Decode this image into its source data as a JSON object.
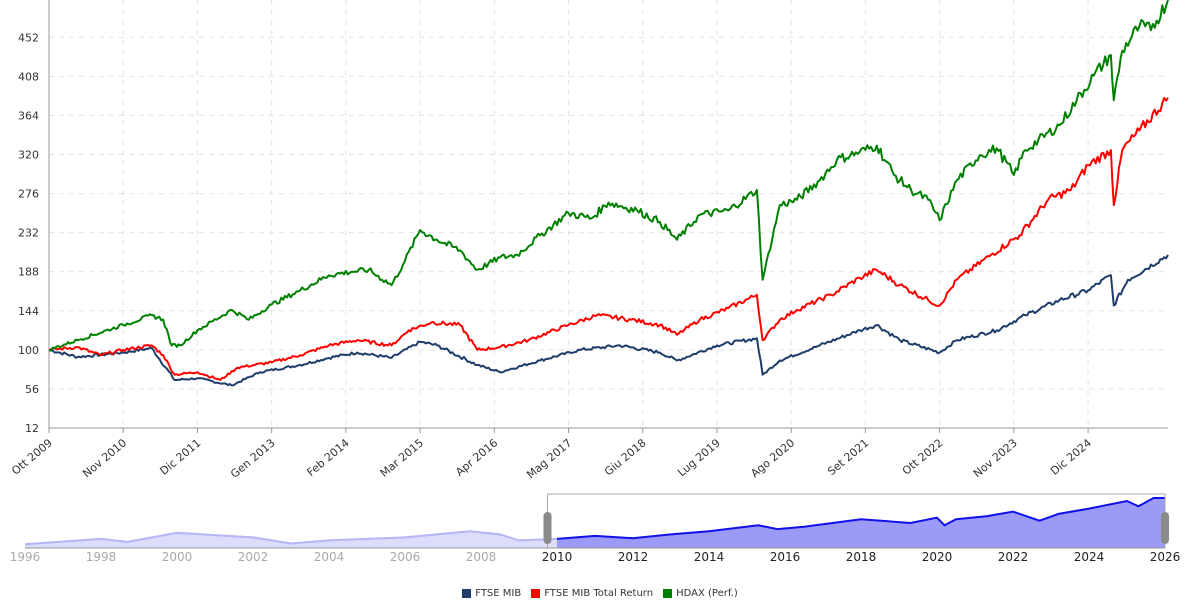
{
  "chart_data": {
    "type": "line",
    "title": "",
    "xlabel": "",
    "ylabel": "",
    "x_unit": "months since Oct 2009",
    "xlim": [
      0,
      196
    ],
    "ylim": [
      12,
      494
    ],
    "grid": true,
    "legend_position": "bottom-center",
    "yticks": [
      12,
      56,
      100,
      144,
      188,
      232,
      276,
      320,
      364,
      408,
      452
    ],
    "xticks": [
      {
        "m": 0,
        "label": "Ott 2009"
      },
      {
        "m": 13,
        "label": "Nov 2010"
      },
      {
        "m": 26,
        "label": "Dic 2011"
      },
      {
        "m": 39,
        "label": "Gen 2013"
      },
      {
        "m": 52,
        "label": "Feb 2014"
      },
      {
        "m": 65,
        "label": "Mar 2015"
      },
      {
        "m": 78,
        "label": "Apr 2016"
      },
      {
        "m": 91,
        "label": "Mag 2017"
      },
      {
        "m": 104,
        "label": "Giu 2018"
      },
      {
        "m": 117,
        "label": "Lug 2019"
      },
      {
        "m": 130,
        "label": "Ago 2020"
      },
      {
        "m": 143,
        "label": "Set 2021"
      },
      {
        "m": 156,
        "label": "Ott 2022"
      },
      {
        "m": 169,
        "label": "Nov 2023"
      },
      {
        "m": 182,
        "label": "Dic 2024"
      }
    ],
    "series": [
      {
        "name": "FTSE MIB",
        "color": "#1f3d6b",
        "points": [
          [
            0,
            100
          ],
          [
            5,
            92
          ],
          [
            13,
            97
          ],
          [
            18,
            102
          ],
          [
            22,
            66
          ],
          [
            26,
            68
          ],
          [
            32,
            60
          ],
          [
            37,
            75
          ],
          [
            44,
            83
          ],
          [
            49,
            91
          ],
          [
            54,
            97
          ],
          [
            60,
            91
          ],
          [
            65,
            109
          ],
          [
            68,
            105
          ],
          [
            75,
            83
          ],
          [
            79,
            75
          ],
          [
            86,
            88
          ],
          [
            93,
            100
          ],
          [
            100,
            105
          ],
          [
            107,
            97
          ],
          [
            110,
            88
          ],
          [
            117,
            105
          ],
          [
            124,
            113
          ],
          [
            125,
            72
          ],
          [
            128,
            88
          ],
          [
            135,
            105
          ],
          [
            142,
            122
          ],
          [
            145,
            128
          ],
          [
            149,
            111
          ],
          [
            156,
            97
          ],
          [
            159,
            111
          ],
          [
            166,
            122
          ],
          [
            171,
            139
          ],
          [
            177,
            156
          ],
          [
            182,
            167
          ],
          [
            186,
            184
          ],
          [
            186.5,
            150
          ],
          [
            189,
            179
          ],
          [
            196,
            207
          ]
        ]
      },
      {
        "name": "FTSE MIB Total Return",
        "color": "#ff0000",
        "points": [
          [
            0,
            100
          ],
          [
            5,
            103
          ],
          [
            9,
            94
          ],
          [
            13,
            100
          ],
          [
            18,
            105
          ],
          [
            20,
            94
          ],
          [
            22,
            72
          ],
          [
            26,
            75
          ],
          [
            30,
            66
          ],
          [
            33,
            80
          ],
          [
            39,
            86
          ],
          [
            44,
            94
          ],
          [
            49,
            105
          ],
          [
            54,
            111
          ],
          [
            60,
            105
          ],
          [
            63,
            122
          ],
          [
            67,
            131
          ],
          [
            72,
            128
          ],
          [
            75,
            100
          ],
          [
            79,
            103
          ],
          [
            84,
            111
          ],
          [
            91,
            128
          ],
          [
            96,
            139
          ],
          [
            102,
            134
          ],
          [
            107,
            128
          ],
          [
            110,
            117
          ],
          [
            114,
            134
          ],
          [
            119,
            147
          ],
          [
            124,
            162
          ],
          [
            125,
            111
          ],
          [
            128,
            134
          ],
          [
            131,
            145
          ],
          [
            137,
            162
          ],
          [
            142,
            181
          ],
          [
            145,
            190
          ],
          [
            149,
            173
          ],
          [
            154,
            156
          ],
          [
            156,
            150
          ],
          [
            159,
            179
          ],
          [
            165,
            207
          ],
          [
            170,
            229
          ],
          [
            175,
            269
          ],
          [
            179,
            280
          ],
          [
            182,
            308
          ],
          [
            186,
            325
          ],
          [
            186.5,
            263
          ],
          [
            188,
            325
          ],
          [
            191,
            347
          ],
          [
            196,
            384
          ]
        ]
      },
      {
        "name": "HDAX (Perf.)",
        "color": "#008000",
        "points": [
          [
            0,
            100
          ],
          [
            5,
            111
          ],
          [
            13,
            128
          ],
          [
            18,
            139
          ],
          [
            20,
            134
          ],
          [
            21.5,
            105
          ],
          [
            23,
            105
          ],
          [
            26,
            122
          ],
          [
            32,
            145
          ],
          [
            35,
            134
          ],
          [
            39,
            151
          ],
          [
            44,
            167
          ],
          [
            49,
            184
          ],
          [
            53,
            188
          ],
          [
            56,
            190
          ],
          [
            60,
            173
          ],
          [
            62,
            196
          ],
          [
            65,
            235
          ],
          [
            68,
            224
          ],
          [
            72,
            212
          ],
          [
            75,
            190
          ],
          [
            79,
            204
          ],
          [
            82,
            207
          ],
          [
            86,
            229
          ],
          [
            91,
            254
          ],
          [
            95,
            248
          ],
          [
            98,
            266
          ],
          [
            103,
            257
          ],
          [
            107,
            244
          ],
          [
            110,
            224
          ],
          [
            114,
            252
          ],
          [
            119,
            257
          ],
          [
            124,
            280
          ],
          [
            125,
            179
          ],
          [
            128,
            263
          ],
          [
            131,
            269
          ],
          [
            135,
            291
          ],
          [
            138,
            314
          ],
          [
            142,
            323
          ],
          [
            145,
            330
          ],
          [
            148,
            297
          ],
          [
            151,
            280
          ],
          [
            154,
            269
          ],
          [
            156,
            246
          ],
          [
            159,
            291
          ],
          [
            163,
            319
          ],
          [
            166,
            327
          ],
          [
            169,
            297
          ],
          [
            171,
            325
          ],
          [
            177,
            353
          ],
          [
            180,
            381
          ],
          [
            183,
            409
          ],
          [
            186,
            432
          ],
          [
            186.5,
            381
          ],
          [
            188,
            437
          ],
          [
            191,
            465
          ],
          [
            193,
            460
          ],
          [
            196,
            494
          ]
        ]
      }
    ],
    "navigator": {
      "xlim": [
        1996,
        2026
      ],
      "xticks": [
        "1996",
        "1998",
        "2000",
        "2002",
        "2004",
        "2006",
        "2008",
        "2010",
        "2012",
        "2014",
        "2016",
        "2018",
        "2020",
        "2022",
        "2024",
        "2026"
      ],
      "selected_range": [
        2009.75,
        2026
      ],
      "points": [
        [
          1996,
          5
        ],
        [
          1998,
          12
        ],
        [
          1998.7,
          8
        ],
        [
          2000,
          20
        ],
        [
          2001,
          17
        ],
        [
          2002,
          14
        ],
        [
          2003,
          6
        ],
        [
          2004,
          10
        ],
        [
          2006,
          14
        ],
        [
          2007.7,
          22
        ],
        [
          2008.5,
          18
        ],
        [
          2009,
          10
        ],
        [
          2010,
          12
        ],
        [
          2011,
          16
        ],
        [
          2012,
          13
        ],
        [
          2013,
          18
        ],
        [
          2014,
          22
        ],
        [
          2015.3,
          30
        ],
        [
          2015.8,
          25
        ],
        [
          2016.5,
          28
        ],
        [
          2018,
          38
        ],
        [
          2019.3,
          33
        ],
        [
          2020,
          40
        ],
        [
          2020.2,
          30
        ],
        [
          2020.5,
          38
        ],
        [
          2021.3,
          42
        ],
        [
          2022,
          48
        ],
        [
          2022.7,
          36
        ],
        [
          2023.2,
          45
        ],
        [
          2024,
          52
        ],
        [
          2025,
          62
        ],
        [
          2025.3,
          55
        ],
        [
          2025.7,
          66
        ],
        [
          2026,
          66
        ]
      ]
    }
  }
}
